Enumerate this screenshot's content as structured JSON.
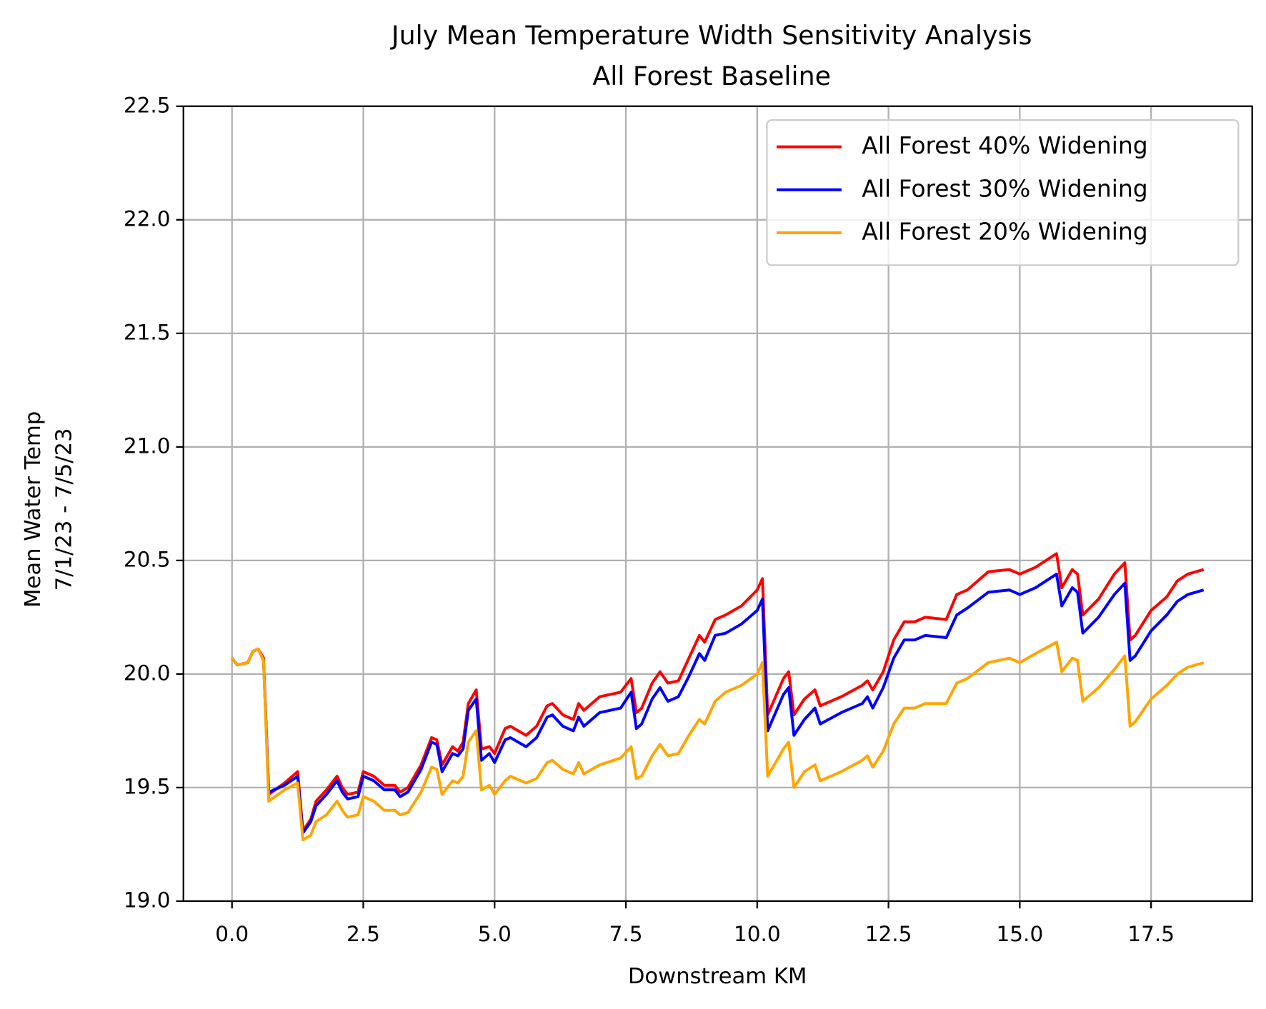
{
  "chart_data": {
    "type": "line",
    "title": "July Mean Temperature Width Sensitivity Analysis",
    "subtitle": "All Forest Baseline",
    "xlabel": "Downstream KM",
    "ylabel": [
      "Mean Water Temp",
      "7/1/23 - 7/5/23"
    ],
    "x": [
      0,
      0.1,
      0.3,
      0.4,
      0.5,
      0.6,
      0.7,
      1.0,
      1.25,
      1.35,
      1.5,
      1.6,
      1.8,
      2.0,
      2.1,
      2.2,
      2.4,
      2.5,
      2.7,
      2.9,
      3.1,
      3.2,
      3.35,
      3.6,
      3.8,
      3.9,
      4.0,
      4.2,
      4.3,
      4.4,
      4.5,
      4.65,
      4.75,
      4.9,
      5.0,
      5.2,
      5.3,
      5.6,
      5.8,
      6.0,
      6.1,
      6.3,
      6.5,
      6.6,
      6.7,
      7.0,
      7.4,
      7.6,
      7.7,
      7.8,
      8.0,
      8.15,
      8.3,
      8.5,
      8.7,
      8.9,
      9.0,
      9.2,
      9.4,
      9.7,
      10.0,
      10.1,
      10.2,
      10.5,
      10.6,
      10.7,
      10.9,
      11.1,
      11.2,
      11.6,
      12.0,
      12.1,
      12.2,
      12.4,
      12.6,
      12.8,
      13.0,
      13.2,
      13.6,
      13.8,
      14.0,
      14.4,
      14.8,
      15.0,
      15.3,
      15.7,
      15.8,
      16.0,
      16.1,
      16.2,
      16.5,
      16.8,
      17.0,
      17.1,
      17.2,
      17.5,
      17.8,
      18.0,
      18.2,
      18.5
    ],
    "series": [
      {
        "name": "All Forest 40% Widening",
        "color": "#ff0000",
        "values": [
          20.07,
          20.04,
          20.05,
          20.1,
          20.11,
          20.07,
          19.47,
          19.52,
          19.57,
          19.31,
          19.36,
          19.44,
          19.49,
          19.55,
          19.5,
          19.47,
          19.48,
          19.57,
          19.55,
          19.51,
          19.51,
          19.48,
          19.5,
          19.6,
          19.72,
          19.71,
          19.6,
          19.68,
          19.66,
          19.7,
          19.87,
          19.93,
          19.67,
          19.68,
          19.65,
          19.76,
          19.77,
          19.73,
          19.77,
          19.86,
          19.87,
          19.82,
          19.8,
          19.87,
          19.84,
          19.9,
          19.92,
          19.98,
          19.83,
          19.85,
          19.96,
          20.01,
          19.96,
          19.97,
          20.07,
          20.17,
          20.14,
          20.24,
          20.26,
          20.3,
          20.37,
          20.42,
          19.82,
          19.98,
          20.01,
          19.82,
          19.89,
          19.93,
          19.86,
          19.9,
          19.95,
          19.97,
          19.93,
          20.01,
          20.15,
          20.23,
          20.23,
          20.25,
          20.24,
          20.35,
          20.37,
          20.45,
          20.46,
          20.44,
          20.47,
          20.53,
          20.38,
          20.46,
          20.44,
          20.26,
          20.33,
          20.44,
          20.49,
          20.15,
          20.17,
          20.28,
          20.34,
          20.41,
          20.44,
          20.46
        ]
      },
      {
        "name": "All Forest 30% Widening",
        "color": "#0000ff",
        "values": [
          20.07,
          20.04,
          20.05,
          20.1,
          20.11,
          20.06,
          19.48,
          19.51,
          19.55,
          19.3,
          19.35,
          19.42,
          19.47,
          19.53,
          19.48,
          19.45,
          19.46,
          19.55,
          19.53,
          19.49,
          19.49,
          19.46,
          19.48,
          19.58,
          19.7,
          19.69,
          19.57,
          19.65,
          19.64,
          19.67,
          19.84,
          19.89,
          19.62,
          19.65,
          19.61,
          19.71,
          19.72,
          19.68,
          19.72,
          19.81,
          19.82,
          19.77,
          19.75,
          19.81,
          19.77,
          19.83,
          19.85,
          19.92,
          19.76,
          19.78,
          19.89,
          19.94,
          19.88,
          19.9,
          19.99,
          20.09,
          20.06,
          20.17,
          20.18,
          20.22,
          20.28,
          20.33,
          19.75,
          19.91,
          19.94,
          19.73,
          19.8,
          19.85,
          19.78,
          19.83,
          19.87,
          19.9,
          19.85,
          19.94,
          20.07,
          20.15,
          20.15,
          20.17,
          20.16,
          20.26,
          20.29,
          20.36,
          20.37,
          20.35,
          20.38,
          20.44,
          20.3,
          20.38,
          20.36,
          20.18,
          20.25,
          20.35,
          20.4,
          20.06,
          20.08,
          20.19,
          20.26,
          20.32,
          20.35,
          20.37
        ]
      },
      {
        "name": "All Forest 20% Widening",
        "color": "#ffa500",
        "values": [
          20.07,
          20.04,
          20.05,
          20.1,
          20.11,
          20.06,
          19.44,
          19.49,
          19.52,
          19.27,
          19.29,
          19.35,
          19.38,
          19.44,
          19.4,
          19.37,
          19.38,
          19.46,
          19.44,
          19.4,
          19.4,
          19.38,
          19.39,
          19.48,
          19.59,
          19.58,
          19.47,
          19.53,
          19.52,
          19.55,
          19.7,
          19.75,
          19.49,
          19.51,
          19.47,
          19.53,
          19.55,
          19.52,
          19.54,
          19.61,
          19.62,
          19.58,
          19.56,
          19.61,
          19.56,
          19.6,
          19.63,
          19.68,
          19.54,
          19.55,
          19.64,
          19.69,
          19.64,
          19.65,
          19.73,
          19.8,
          19.78,
          19.88,
          19.92,
          19.95,
          20.0,
          20.05,
          19.55,
          19.67,
          19.7,
          19.5,
          19.57,
          19.6,
          19.53,
          19.57,
          19.62,
          19.64,
          19.59,
          19.66,
          19.78,
          19.85,
          19.85,
          19.87,
          19.87,
          19.96,
          19.98,
          20.05,
          20.07,
          20.05,
          20.09,
          20.14,
          20.01,
          20.07,
          20.06,
          19.88,
          19.94,
          20.02,
          20.08,
          19.77,
          19.79,
          19.89,
          19.95,
          20.0,
          20.03,
          20.05
        ]
      }
    ],
    "xlim": [
      -0.925,
      19.425
    ],
    "ylim": [
      19,
      22.5
    ],
    "xticks": [
      {
        "value": 0,
        "label": "0.0"
      },
      2.5,
      {
        "value": 5,
        "label": "5.0"
      },
      7.5,
      {
        "value": 10,
        "label": "10.0"
      },
      12.5,
      {
        "value": 15,
        "label": "15.0"
      },
      17.5
    ],
    "yticks": [
      {
        "value": 19,
        "label": "19.0"
      },
      19.5,
      {
        "value": 20,
        "label": "20.0"
      },
      20.5,
      {
        "value": 21,
        "label": "21.0"
      },
      21.5,
      {
        "value": 22,
        "label": "22.0"
      },
      22.5
    ],
    "grid": true,
    "legend": "upper right"
  }
}
